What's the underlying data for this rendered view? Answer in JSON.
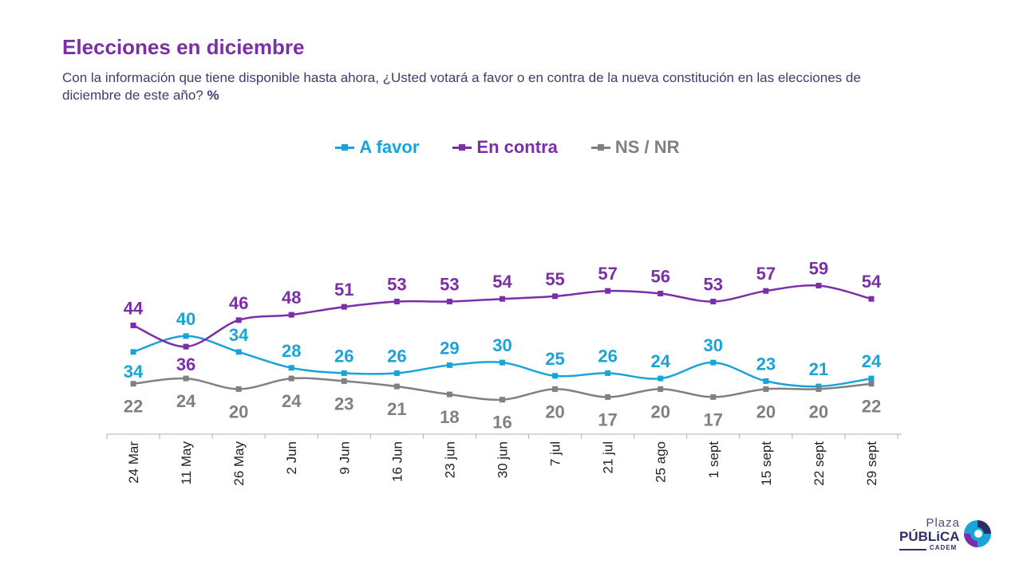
{
  "header": {
    "title": "Elecciones en diciembre",
    "subtitle": "Con la información que tiene disponible hasta ahora, ¿Usted votará a favor o en contra de la nueva constitución en las elecciones de diciembre de este año?",
    "unit": "%"
  },
  "legend": [
    {
      "label": "A favor",
      "color": "#1aa3d9"
    },
    {
      "label": "En contra",
      "color": "#7b2fa6"
    },
    {
      "label": "NS / NR",
      "color": "#808080"
    }
  ],
  "logo": {
    "plaza": "Plaza",
    "publica": "PÚBLiCA",
    "cadem": "CADEM"
  },
  "chart_data": {
    "type": "line",
    "categories": [
      "24 Mar",
      "11 May",
      "26 May",
      "2 Jun",
      "9 Jun",
      "16 Jun",
      "23 jun",
      "30 jun",
      "7 jul",
      "21 jul",
      "25 ago",
      "1 sept",
      "15 sept",
      "22 sept",
      "29 sept"
    ],
    "series": [
      {
        "name": "A favor",
        "color": "#1aa3d9",
        "values": [
          34,
          40,
          34,
          28,
          26,
          26,
          29,
          30,
          25,
          26,
          24,
          30,
          23,
          21,
          24
        ]
      },
      {
        "name": "En contra",
        "color": "#7b2fa6",
        "values": [
          44,
          36,
          46,
          48,
          51,
          53,
          53,
          54,
          55,
          57,
          56,
          53,
          57,
          59,
          54
        ]
      },
      {
        "name": "NS / NR",
        "color": "#808080",
        "values": [
          22,
          24,
          20,
          24,
          23,
          21,
          18,
          16,
          20,
          17,
          20,
          17,
          20,
          20,
          22
        ]
      }
    ],
    "legend_position": "top-center",
    "grid": false
  }
}
